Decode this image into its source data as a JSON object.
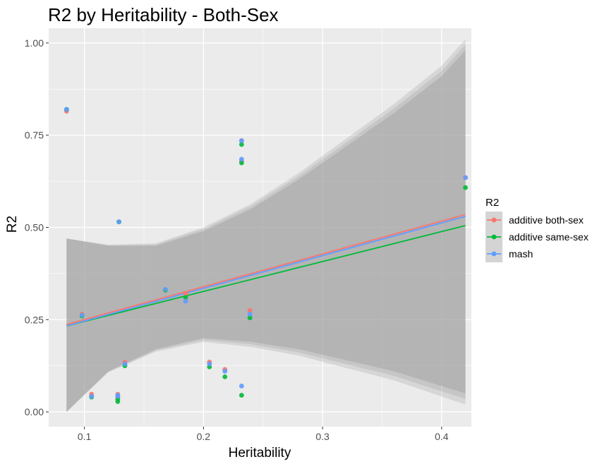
{
  "chart_data": {
    "type": "scatter",
    "title": "R2 by Heritability - Both-Sex",
    "xlabel": "Heritability",
    "ylabel": "R2",
    "xlim": [
      0.07,
      0.425
    ],
    "ylim": [
      -0.04,
      1.04
    ],
    "x_ticks": [
      0.1,
      0.2,
      0.3,
      0.4
    ],
    "x_tick_labels": [
      "0.1",
      "0.2",
      "0.3",
      "0.4"
    ],
    "y_ticks": [
      0,
      0.25,
      0.5,
      0.75,
      1.0
    ],
    "y_tick_labels": [
      "0.00",
      "0.25",
      "0.50",
      "0.75",
      "1.00"
    ],
    "grid": true,
    "legend_title": "R2",
    "legend_position": "right",
    "series": [
      {
        "name": "additive both-sex",
        "color": "#F8766D",
        "points": [
          [
            0.085,
            0.815
          ],
          [
            0.098,
            0.265
          ],
          [
            0.106,
            0.048
          ],
          [
            0.128,
            0.048
          ],
          [
            0.128,
            0.04
          ],
          [
            0.129,
            0.515
          ],
          [
            0.134,
            0.135
          ],
          [
            0.168,
            0.33
          ],
          [
            0.185,
            0.32
          ],
          [
            0.205,
            0.135
          ],
          [
            0.218,
            0.115
          ],
          [
            0.232,
            0.735
          ],
          [
            0.232,
            0.68
          ],
          [
            0.239,
            0.275
          ],
          [
            0.42,
            0.635
          ]
        ],
        "fit": [
          [
            0.085,
            0.237
          ],
          [
            0.42,
            0.535
          ]
        ]
      },
      {
        "name": "additive same-sex",
        "color": "#00BA38",
        "points": [
          [
            0.085,
            0.82
          ],
          [
            0.098,
            0.26
          ],
          [
            0.106,
            0.04
          ],
          [
            0.128,
            0.028
          ],
          [
            0.128,
            0.035
          ],
          [
            0.129,
            0.515
          ],
          [
            0.134,
            0.125
          ],
          [
            0.168,
            0.33
          ],
          [
            0.185,
            0.31
          ],
          [
            0.205,
            0.122
          ],
          [
            0.218,
            0.095
          ],
          [
            0.232,
            0.045
          ],
          [
            0.232,
            0.725
          ],
          [
            0.232,
            0.675
          ],
          [
            0.239,
            0.255
          ],
          [
            0.42,
            0.608
          ]
        ],
        "fit": [
          [
            0.085,
            0.233
          ],
          [
            0.42,
            0.505
          ]
        ]
      },
      {
        "name": "mash",
        "color": "#619CFF",
        "points": [
          [
            0.085,
            0.82
          ],
          [
            0.098,
            0.262
          ],
          [
            0.106,
            0.042
          ],
          [
            0.128,
            0.042
          ],
          [
            0.128,
            0.045
          ],
          [
            0.129,
            0.515
          ],
          [
            0.134,
            0.13
          ],
          [
            0.168,
            0.332
          ],
          [
            0.185,
            0.3
          ],
          [
            0.205,
            0.13
          ],
          [
            0.218,
            0.11
          ],
          [
            0.232,
            0.07
          ],
          [
            0.232,
            0.735
          ],
          [
            0.232,
            0.685
          ],
          [
            0.239,
            0.265
          ],
          [
            0.42,
            0.635
          ]
        ],
        "fit": [
          [
            0.085,
            0.233
          ],
          [
            0.42,
            0.53
          ]
        ]
      }
    ],
    "confidence_band": {
      "x": [
        0.085,
        0.12,
        0.16,
        0.2,
        0.24,
        0.28,
        0.32,
        0.36,
        0.4,
        0.42
      ],
      "lower": [
        0.0,
        0.11,
        0.17,
        0.2,
        0.19,
        0.17,
        0.14,
        0.11,
        0.07,
        0.05
      ],
      "upper": [
        0.47,
        0.45,
        0.45,
        0.49,
        0.55,
        0.63,
        0.72,
        0.81,
        0.91,
        0.98
      ]
    }
  }
}
